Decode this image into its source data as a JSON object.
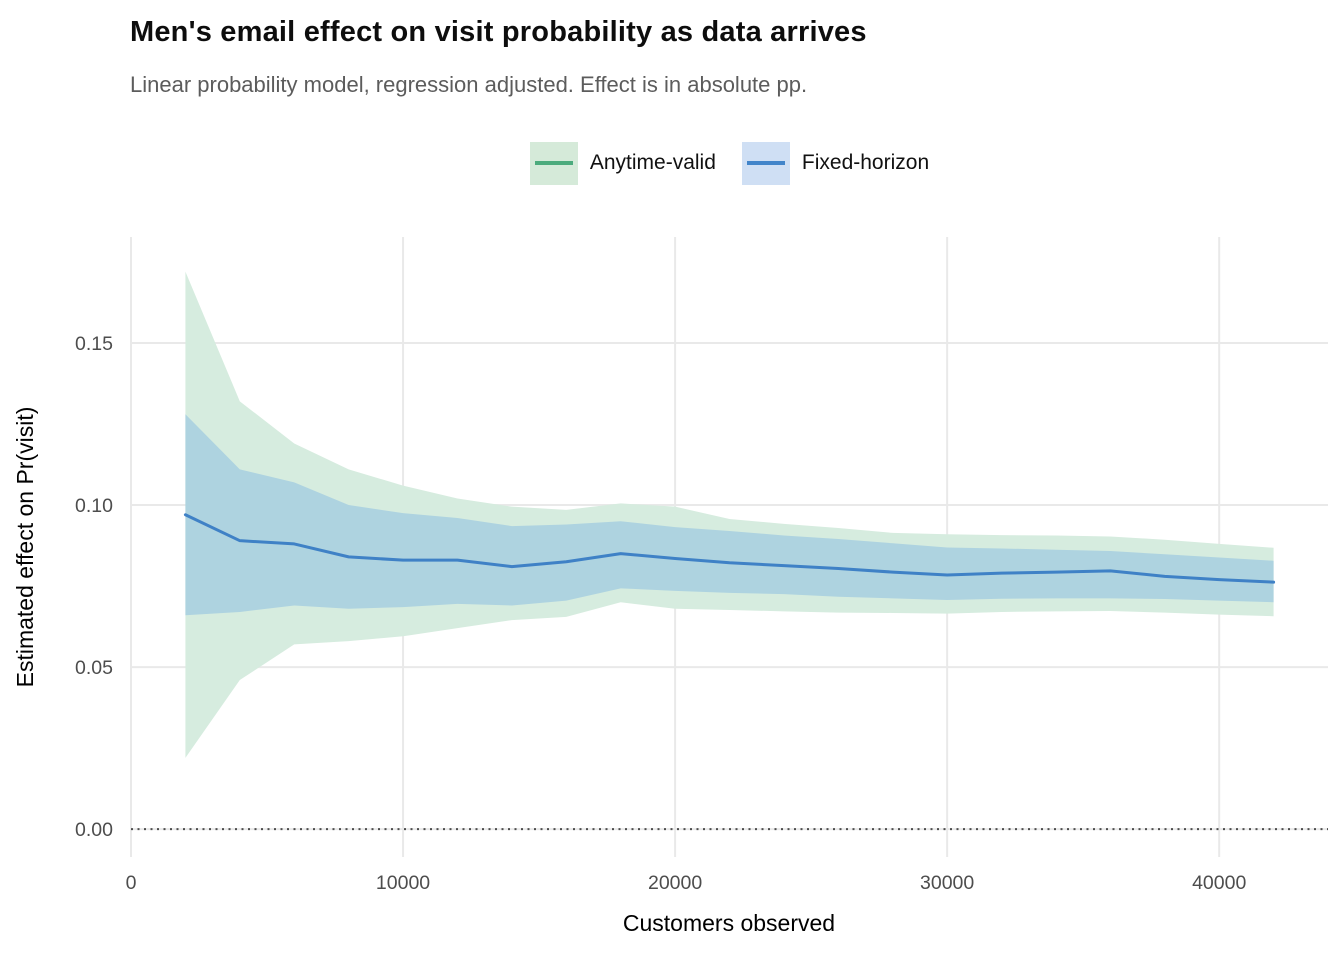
{
  "header": {
    "title": "Men's email effect on visit probability as data arrives",
    "subtitle": "Linear probability model, regression adjusted. Effect is in absolute pp."
  },
  "legend": {
    "position": "top-center",
    "items": [
      {
        "label": "Anytime-valid",
        "fill": "#d5ead9",
        "line": "#4cab7d"
      },
      {
        "label": "Fixed-horizon",
        "fill": "#cfdff4",
        "line": "#4285ca"
      }
    ]
  },
  "axes": {
    "x_title": "Customers observed",
    "y_title": "Estimated effect on Pr(visit)"
  },
  "colors": {
    "anytime_ribbon": "#d6ecdf",
    "fixed_ribbon": "#aed3e0",
    "estimate_line": "#3f81c6",
    "zero_line": "#4d4d4d",
    "gridline": "#e9e9e9",
    "tick_label": "#4d4d4d",
    "subtitle": "#5c5c5c"
  },
  "chart_data": {
    "type": "line",
    "title": "Men's email effect on visit probability as data arrives",
    "subtitle": "Linear probability model, regression adjusted. Effect is in absolute pp.",
    "xlabel": "Customers observed",
    "ylabel": "Estimated effect on Pr(visit)",
    "xlim": [
      0,
      44000
    ],
    "ylim": [
      -0.0086,
      0.1827
    ],
    "grid": "major-only",
    "legend_position": "top",
    "x_ticks": [
      {
        "value": 0,
        "label": "0"
      },
      {
        "value": 10000,
        "label": "10000"
      },
      {
        "value": 20000,
        "label": "20000"
      },
      {
        "value": 30000,
        "label": "30000"
      },
      {
        "value": 40000,
        "label": "40000"
      }
    ],
    "y_ticks": [
      {
        "value": 0.0,
        "label": "0.00"
      },
      {
        "value": 0.05,
        "label": "0.05"
      },
      {
        "value": 0.1,
        "label": "0.10"
      },
      {
        "value": 0.15,
        "label": "0.15"
      }
    ],
    "zero_reference_line": {
      "y": 0,
      "style": "dotted"
    },
    "x": [
      2000,
      4000,
      6000,
      8000,
      10000,
      12000,
      14000,
      16000,
      18000,
      20000,
      22000,
      24000,
      26000,
      28000,
      30000,
      32000,
      34000,
      36000,
      38000,
      40000,
      42000
    ],
    "series": [
      {
        "name": "estimate",
        "kind": "line",
        "values": [
          0.097,
          0.089,
          0.088,
          0.084,
          0.083,
          0.083,
          0.081,
          0.0825,
          0.085,
          0.0835,
          0.0822,
          0.0813,
          0.0804,
          0.0793,
          0.0784,
          0.079,
          0.0793,
          0.0797,
          0.078,
          0.077,
          0.0762
        ]
      },
      {
        "name": "fixed-horizon-ci",
        "legend_label": "Fixed-horizon",
        "kind": "ribbon",
        "lower": [
          0.066,
          0.067,
          0.069,
          0.068,
          0.0685,
          0.0695,
          0.069,
          0.0705,
          0.0743,
          0.0735,
          0.0729,
          0.0725,
          0.0717,
          0.0712,
          0.0707,
          0.0711,
          0.0712,
          0.0712,
          0.071,
          0.0705,
          0.07
        ],
        "upper": [
          0.128,
          0.111,
          0.107,
          0.1,
          0.0975,
          0.096,
          0.0935,
          0.094,
          0.095,
          0.0932,
          0.092,
          0.0906,
          0.0895,
          0.0882,
          0.0869,
          0.0866,
          0.0862,
          0.0858,
          0.0848,
          0.0838,
          0.0828
        ]
      },
      {
        "name": "anytime-valid-ci",
        "legend_label": "Anytime-valid",
        "kind": "ribbon",
        "lower": [
          0.022,
          0.046,
          0.057,
          0.058,
          0.0595,
          0.062,
          0.0645,
          0.0655,
          0.07,
          0.068,
          0.0676,
          0.0672,
          0.0668,
          0.0667,
          0.0665,
          0.067,
          0.0672,
          0.0673,
          0.0668,
          0.0662,
          0.0657
        ],
        "upper": [
          0.172,
          0.132,
          0.119,
          0.111,
          0.106,
          0.102,
          0.0995,
          0.0985,
          0.1005,
          0.0995,
          0.0957,
          0.0942,
          0.0929,
          0.0914,
          0.091,
          0.0907,
          0.0906,
          0.0903,
          0.0893,
          0.088,
          0.0868
        ]
      }
    ]
  }
}
